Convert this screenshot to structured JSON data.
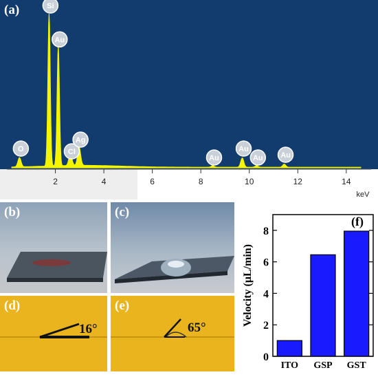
{
  "figure": {
    "panel_a": {
      "label": "(a)",
      "x_unit": "keV",
      "x_ticks": [
        "2",
        "4",
        "6",
        "8",
        "10",
        "12",
        "14"
      ],
      "peaks": [
        {
          "element": "O",
          "energy": 0.52,
          "height": 0.06
        },
        {
          "element": "Si",
          "energy": 1.74,
          "height": 1.0
        },
        {
          "element": "Au",
          "energy": 2.12,
          "height": 0.78
        },
        {
          "element": "Cl",
          "energy": 2.62,
          "height": 0.08
        },
        {
          "element": "Ag",
          "energy": 2.98,
          "height": 0.12
        },
        {
          "element": "Au",
          "energy": 8.49,
          "height": 0.01
        },
        {
          "element": "Au",
          "energy": 9.71,
          "height": 0.06
        },
        {
          "element": "Au",
          "energy": 10.3,
          "height": 0.01
        },
        {
          "element": "Au",
          "energy": 11.44,
          "height": 0.02
        }
      ],
      "colors": {
        "background": "#123b6e",
        "spectrum": "#f5f500",
        "badge": "#c9d0d8"
      }
    },
    "panel_b": {
      "label": "(b)"
    },
    "panel_c": {
      "label": "(c)"
    },
    "panel_d": {
      "label": "(d)",
      "angle": "16°"
    },
    "panel_e": {
      "label": "(e)",
      "angle": "65°"
    }
  },
  "chart_data": {
    "type": "bar",
    "panel_label": "(f)",
    "categories": [
      "ITO",
      "GSP",
      "GST"
    ],
    "values": [
      1.0,
      6.45,
      7.95
    ],
    "ylabel": "Velocity (μL/min)",
    "ylim": [
      0,
      9
    ],
    "yticks": [
      "0",
      "2",
      "4",
      "6",
      "8"
    ],
    "bar_color": "#1a1aff"
  }
}
